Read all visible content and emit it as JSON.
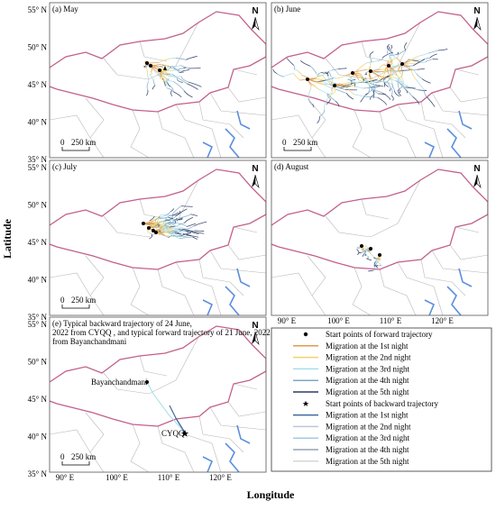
{
  "axis_labels": {
    "y": "Latitude",
    "x": "Longitude"
  },
  "lat_ticks": [
    "55° N",
    "50° N",
    "45° N",
    "40° N",
    "35° N"
  ],
  "lon_ticks": [
    "90° E",
    "100° E",
    "110° E",
    "120° E"
  ],
  "panels": [
    {
      "label": "(a) May"
    },
    {
      "label": "(b) June"
    },
    {
      "label": "(c) July"
    },
    {
      "label": "(d) August"
    },
    {
      "label": "(e) Typical backward trajectory of 24 June, 2022  from CYQQ , and typical forward trajectory of 21 June, 2022  from Bayanchandmani"
    }
  ],
  "scale": {
    "zero": "0",
    "distance": "250 km"
  },
  "north": "N",
  "places": [
    "Bayanchandmani",
    "CYQQ"
  ],
  "legend": {
    "items": [
      {
        "label": "Start points of forward trajectory",
        "color": "#000000",
        "marker": "dot"
      },
      {
        "label": "Migration at the 1st night",
        "color": "#e09a50",
        "marker": "line"
      },
      {
        "label": "Migration at the 2nd night",
        "color": "#f2d36a",
        "marker": "line"
      },
      {
        "label": "Migration at the 3rd night",
        "color": "#a6dde9",
        "marker": "line"
      },
      {
        "label": "Migration at the 4th night",
        "color": "#7fa7c4",
        "marker": "line"
      },
      {
        "label": "Migration at the 5th night",
        "color": "#2f3c66",
        "marker": "line"
      },
      {
        "label": "Start points of backward trajectory",
        "color": "#000000",
        "marker": "star"
      },
      {
        "label": "Migration at the 1st night",
        "color": "#3f6aa0",
        "marker": "line"
      },
      {
        "label": "Migration at the 2nd night",
        "color": "#bcc6d8",
        "marker": "line"
      },
      {
        "label": "Migration at the 3rd night",
        "color": "#9fcbe6",
        "marker": "line"
      },
      {
        "label": "Migration at the 4th night",
        "color": "#98a2b6",
        "marker": "line"
      },
      {
        "label": "Migration at the 5th night",
        "color": "#d6d6d6",
        "marker": "line"
      }
    ]
  }
}
